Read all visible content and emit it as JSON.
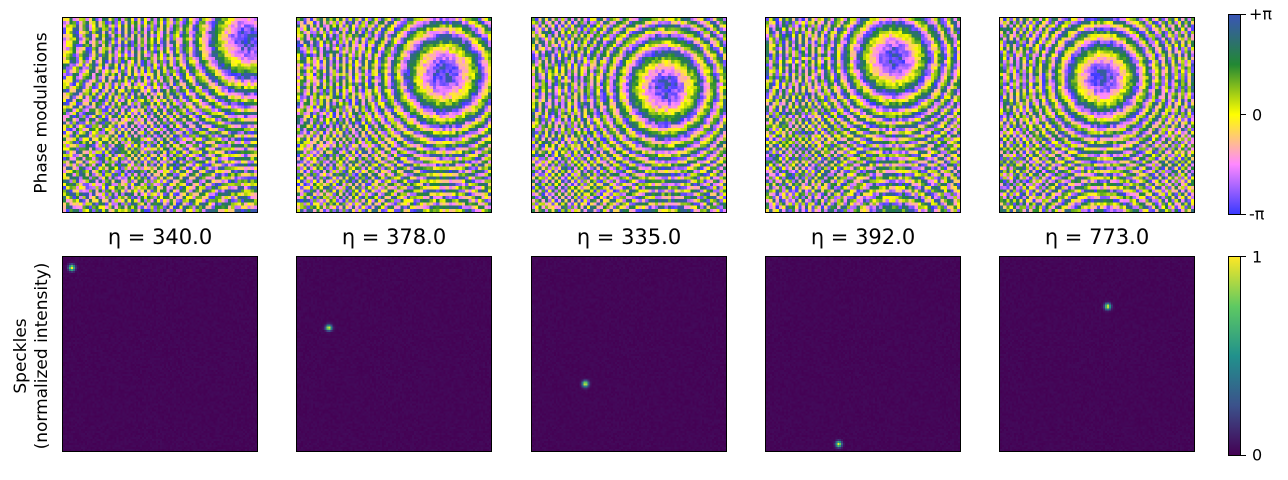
{
  "chart_data": [
    {
      "type": "heatmap",
      "row": "Phase modulations",
      "ylabel": "Phase modulations",
      "panels": 5,
      "colorbar": {
        "colors": [
          "#3a3aff",
          "#ff88ff",
          "#ffff00",
          "#228833",
          "#3a55b5"
        ],
        "ticks": [
          "-π",
          "0",
          "+π"
        ],
        "range": [
          -3.1416,
          3.1416
        ]
      }
    },
    {
      "type": "heatmap",
      "row": "Speckles",
      "ylabel_lines": [
        "Speckles",
        "(normalized intensity)"
      ],
      "panels": [
        {
          "eta_label": "η = 340.0",
          "eta": 340.0,
          "spot": [
            0.04,
            0.05
          ]
        },
        {
          "eta_label": "η = 378.0",
          "eta": 378.0,
          "spot": [
            0.16,
            0.36
          ]
        },
        {
          "eta_label": "η = 335.0",
          "eta": 335.0,
          "spot": [
            0.27,
            0.65
          ]
        },
        {
          "eta_label": "η = 392.0",
          "eta": 392.0,
          "spot": [
            0.37,
            0.96
          ]
        },
        {
          "eta_label": "η = 773.0",
          "eta": 773.0,
          "spot": [
            0.55,
            0.25
          ]
        }
      ],
      "colorbar": {
        "colormap": "viridis",
        "colors": [
          "#440154",
          "#3b528b",
          "#21918c",
          "#5ec962",
          "#fde725"
        ],
        "ticks": [
          "0",
          "1"
        ],
        "range": [
          0,
          1
        ]
      }
    }
  ]
}
